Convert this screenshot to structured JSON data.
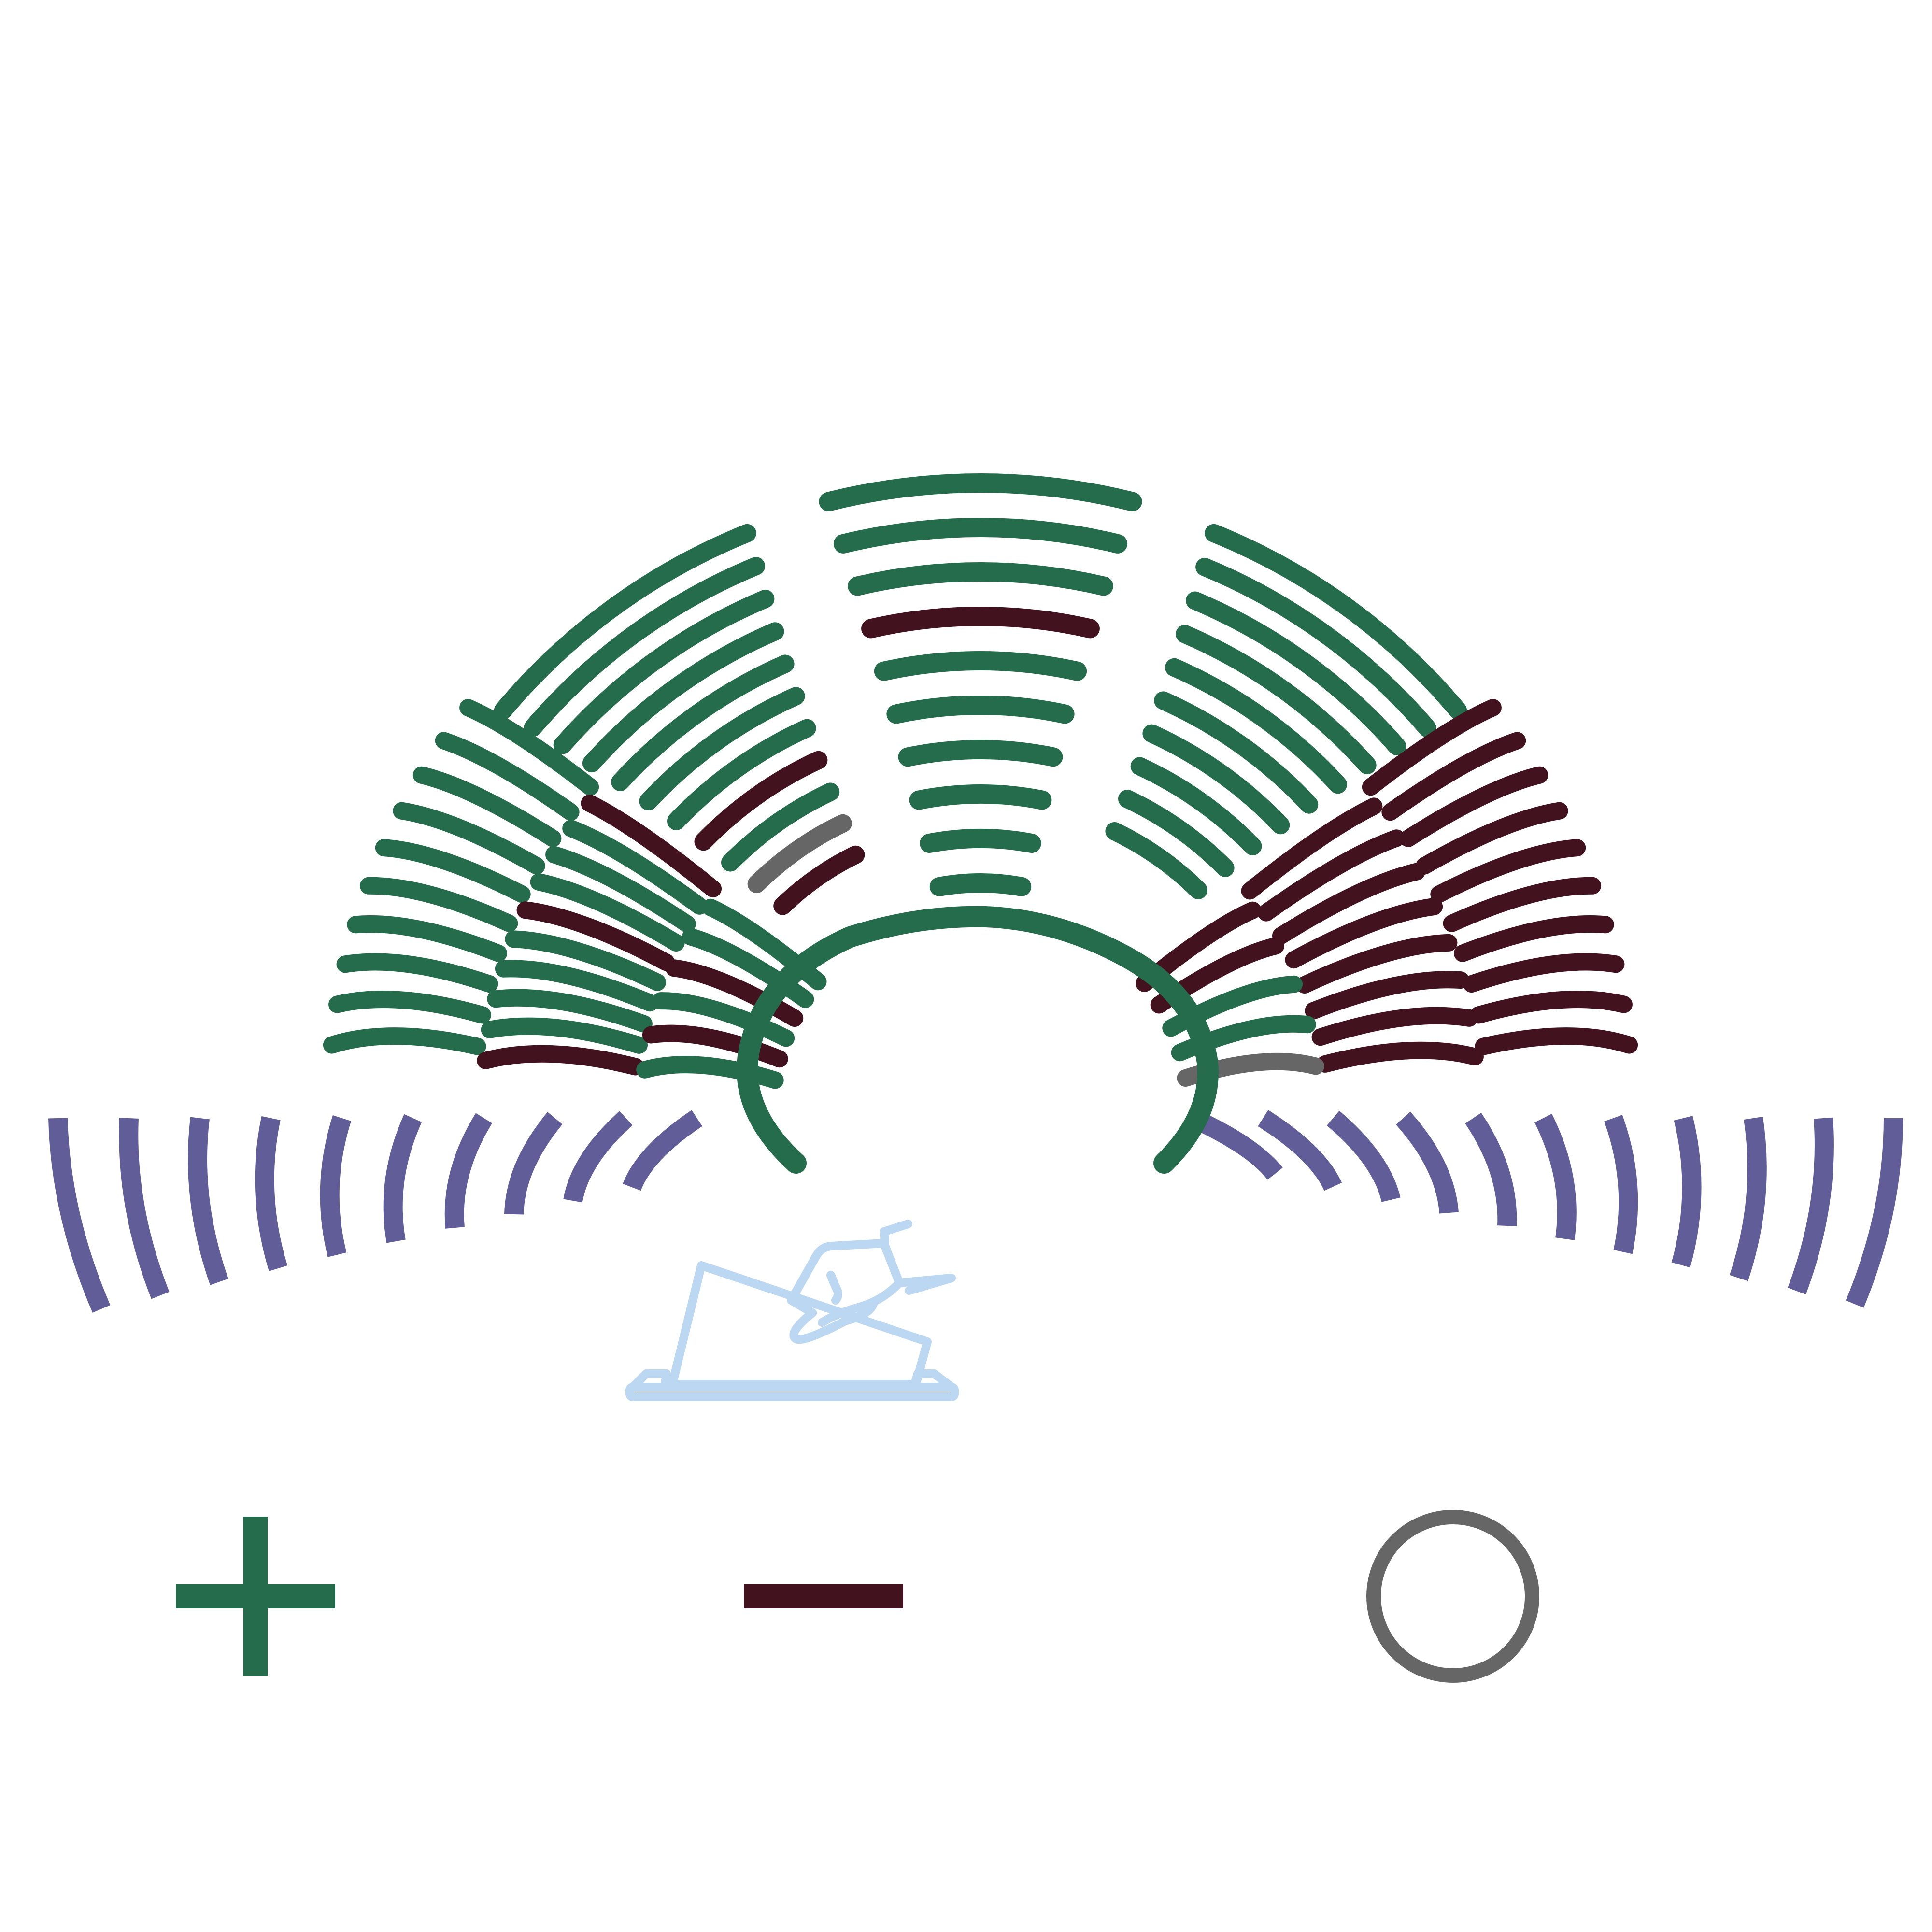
{
  "diagram": {
    "type": "parliament-seat-vote-diagram",
    "vote_colors": {
      "yes": "#256c4c",
      "no": "#43121f",
      "abstain": "#666666",
      "not_voting": "#615d98",
      "speaker": "#bcd7f1"
    },
    "speaker_icon": "speaker-podium-icon",
    "legend": [
      {
        "symbol": "plus-icon",
        "meaning": "yes"
      },
      {
        "symbol": "minus-icon",
        "meaning": "no"
      },
      {
        "symbol": "circle-icon",
        "meaning": "abstain"
      }
    ],
    "groups": [
      {
        "name": "left-wing",
        "rows": [
          {
            "votes": [
              "yes",
              "yes",
              "yes",
              "yes",
              "yes",
              "yes",
              "yes",
              "yes",
              "yes",
              "yes"
            ]
          },
          {
            "votes": [
              "no",
              "yes",
              "yes",
              "yes",
              "yes",
              "no",
              "yes",
              "yes",
              "yes",
              "no"
            ]
          },
          {
            "votes": [
              "yes",
              "no",
              "yes",
              "no",
              "yes",
              "yes"
            ]
          }
        ]
      },
      {
        "name": "upper-left",
        "rows": [
          {
            "votes": [
              "yes"
            ]
          },
          {
            "votes": [
              "yes"
            ]
          },
          {
            "votes": [
              "yes"
            ]
          },
          {
            "votes": [
              "yes"
            ]
          },
          {
            "votes": [
              "yes"
            ]
          },
          {
            "votes": [
              "yes"
            ]
          },
          {
            "votes": [
              "yes"
            ]
          },
          {
            "votes": [
              "no"
            ]
          },
          {
            "votes": [
              "yes"
            ]
          },
          {
            "votes": [
              "abstain"
            ]
          },
          {
            "votes": [
              "no"
            ]
          }
        ]
      },
      {
        "name": "center",
        "rows": [
          {
            "votes": [
              "yes"
            ]
          },
          {
            "votes": [
              "yes"
            ]
          },
          {
            "votes": [
              "yes"
            ]
          },
          {
            "votes": [
              "no"
            ]
          },
          {
            "votes": [
              "yes"
            ]
          },
          {
            "votes": [
              "yes"
            ]
          },
          {
            "votes": [
              "yes"
            ]
          },
          {
            "votes": [
              "yes"
            ]
          },
          {
            "votes": [
              "yes"
            ]
          },
          {
            "votes": [
              "yes"
            ]
          }
        ]
      },
      {
        "name": "upper-right",
        "rows": [
          {
            "votes": [
              "yes"
            ]
          },
          {
            "votes": [
              "yes"
            ]
          },
          {
            "votes": [
              "yes"
            ]
          },
          {
            "votes": [
              "yes"
            ]
          },
          {
            "votes": [
              "yes"
            ]
          },
          {
            "votes": [
              "yes"
            ]
          },
          {
            "votes": [
              "yes"
            ]
          },
          {
            "votes": [
              "yes"
            ]
          },
          {
            "votes": [
              "yes"
            ]
          },
          {
            "votes": [
              "yes"
            ]
          }
        ]
      },
      {
        "name": "right-wing",
        "rows": [
          {
            "votes": [
              "no",
              "no",
              "no",
              "no",
              "no",
              "no",
              "no",
              "no",
              "no",
              "no"
            ]
          },
          {
            "votes": [
              "no",
              "no",
              "no",
              "no",
              "no",
              "no",
              "no",
              "no"
            ]
          },
          {
            "votes": [
              "abstain",
              "yes",
              "yes",
              "no",
              "no"
            ]
          }
        ]
      },
      {
        "name": "inner-ring",
        "rows": [
          {
            "votes": [
              "yes"
            ]
          }
        ]
      },
      {
        "name": "lower-left",
        "votes": [
          "not_voting",
          "not_voting",
          "not_voting",
          "not_voting",
          "not_voting",
          "not_voting",
          "not_voting",
          "not_voting",
          "not_voting",
          "not_voting"
        ]
      },
      {
        "name": "lower-right",
        "votes": [
          "not_voting",
          "not_voting",
          "not_voting",
          "not_voting",
          "not_voting",
          "not_voting",
          "not_voting",
          "not_voting",
          "not_voting",
          "not_voting",
          "not_voting"
        ]
      }
    ]
  }
}
